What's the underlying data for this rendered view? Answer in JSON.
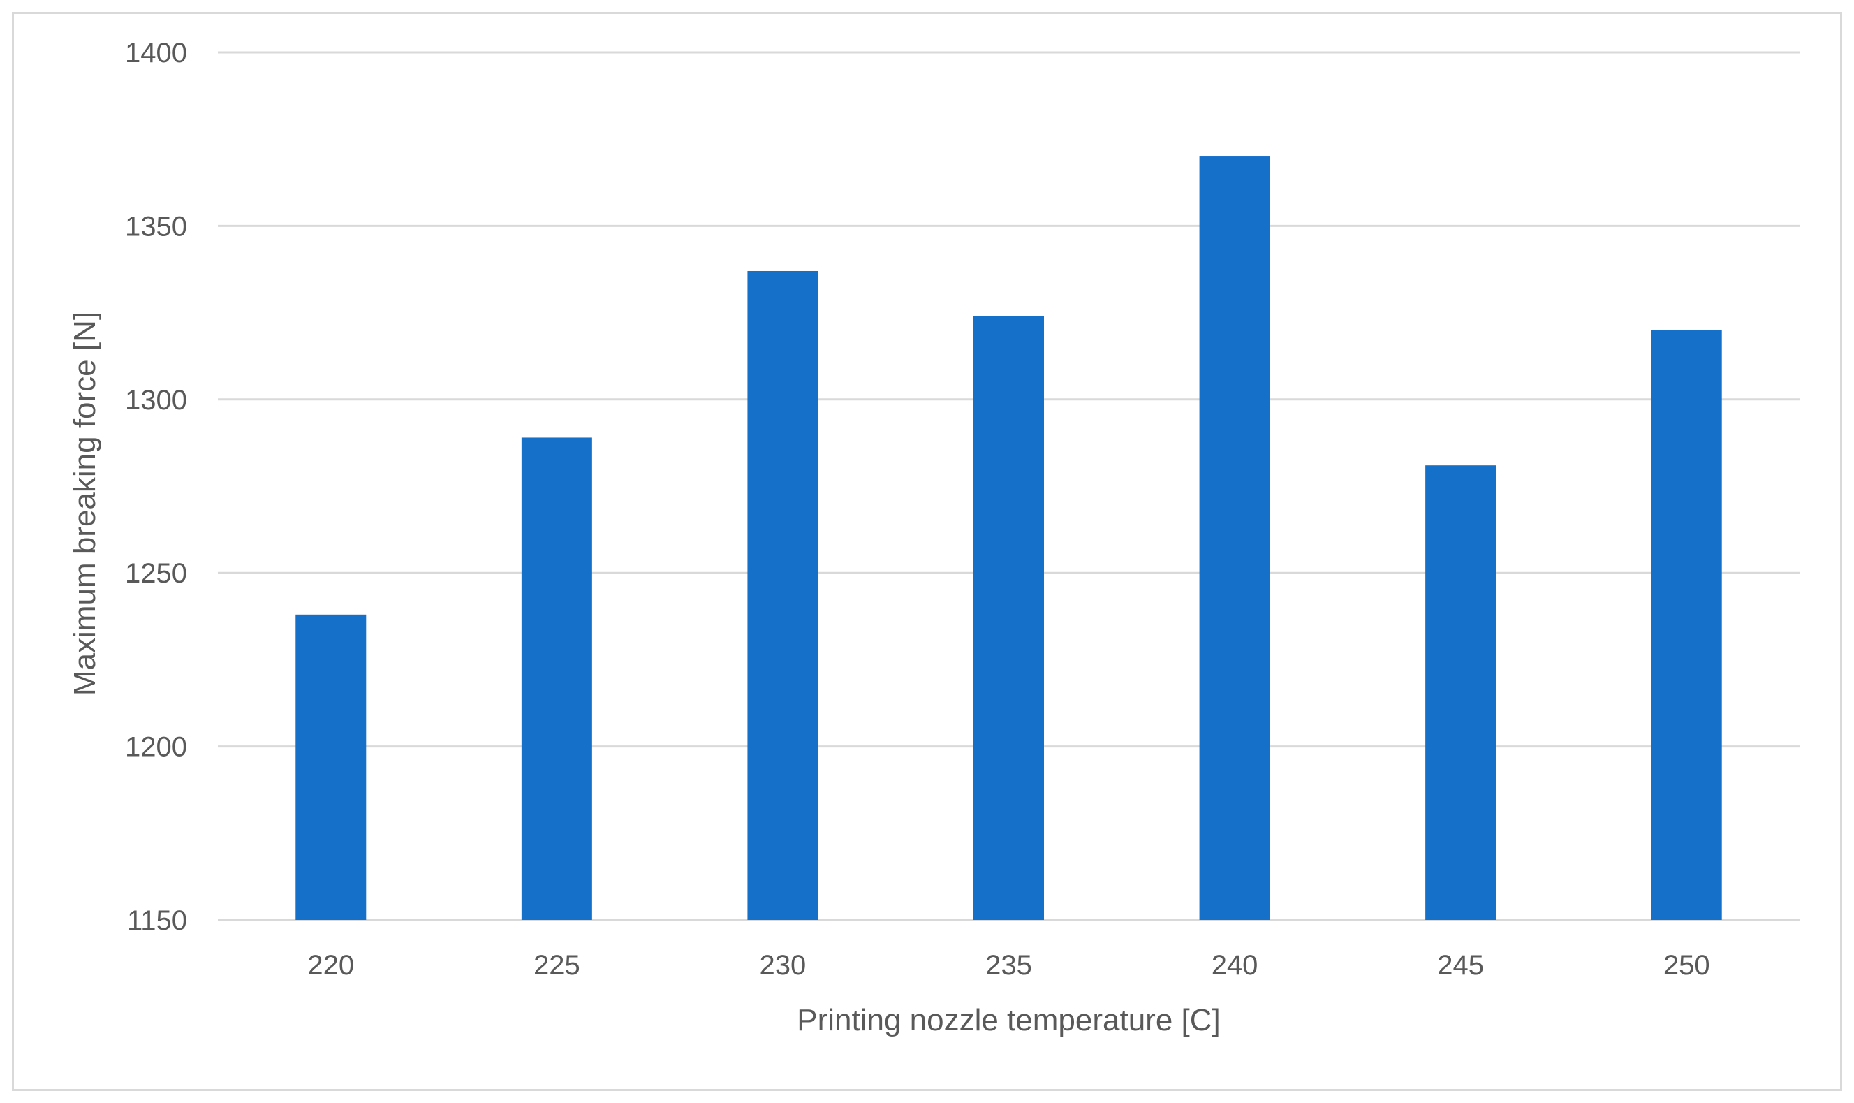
{
  "chart_data": {
    "type": "bar",
    "title": "",
    "xlabel": "Printing nozzle temperature  [C]",
    "ylabel": "Maximum breaking force  [N]",
    "categories": [
      "220",
      "225",
      "230",
      "235",
      "240",
      "245",
      "250"
    ],
    "values": [
      1238,
      1289,
      1337,
      1324,
      1370,
      1281,
      1320
    ],
    "ylim": [
      1150,
      1400
    ],
    "yticks": [
      "1150",
      "1200",
      "1250",
      "1300",
      "1350",
      "1400"
    ],
    "grid": true,
    "legend": "none",
    "colors": {
      "bar": "#1570c9",
      "grid": "#d9d9d9",
      "text": "#595959"
    }
  }
}
